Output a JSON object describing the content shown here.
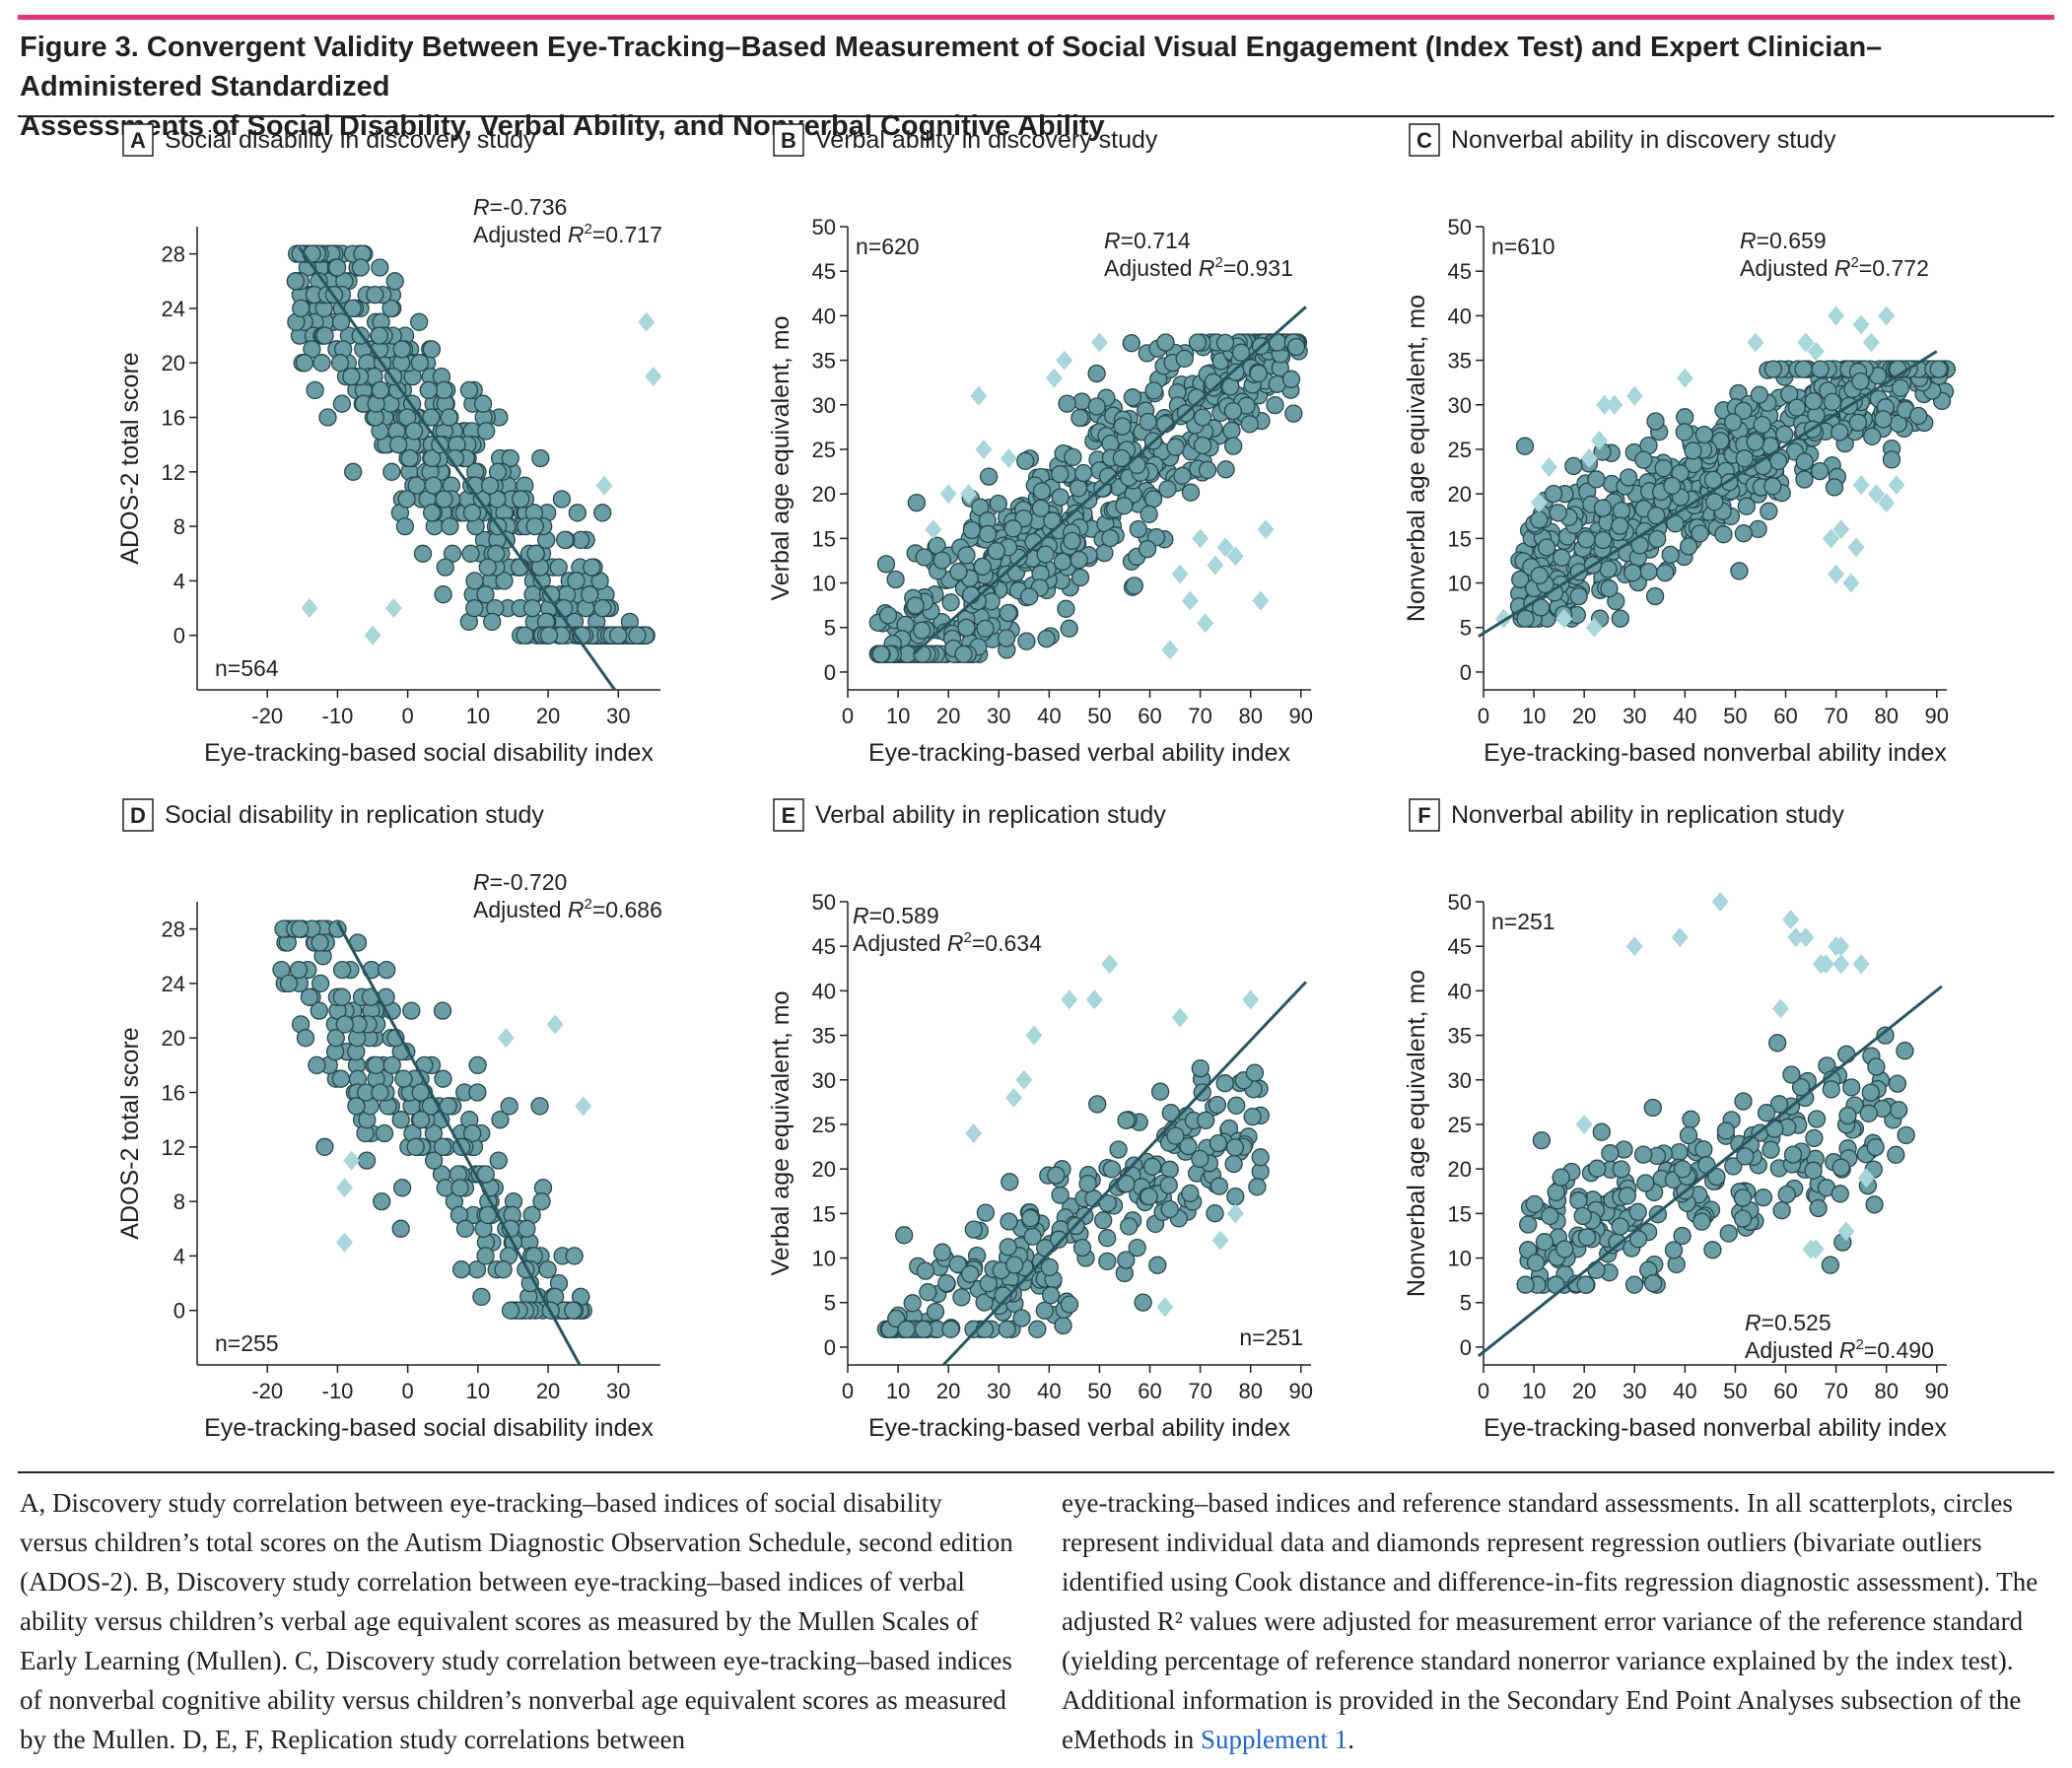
{
  "figure": {
    "title_line1": "Figure 3. Convergent Validity Between Eye-Tracking–Based Measurement of Social Visual Engagement (Index Test) and Expert Clinician–Administered Standardized",
    "title_line2": "Assessments of Social Disability, Verbal Ability, and Nonverbal Cognitive Ability",
    "accent_color": "#e0337a",
    "circle_color": "#6a9ea4",
    "diamond_color": "#a9d6da"
  },
  "caption": {
    "col1": "A, Discovery study correlation between eye-tracking–based indices of social disability versus children’s total scores on the Autism Diagnostic Observation Schedule, second edition (ADOS-2). B, Discovery study correlation between eye-tracking–based indices of verbal ability versus children’s verbal age equivalent scores as measured by the Mullen Scales of Early Learning (Mullen). C, Discovery study correlation between eye-tracking–based indices of nonverbal cognitive ability versus children’s nonverbal age equivalent scores as measured by the Mullen. D, E, F, Replication study correlations between",
    "col2_main": "eye-tracking–based indices and reference standard assessments. In all scatterplots, circles represent individual data and diamonds represent regression outliers (bivariate outliers identified using Cook distance and difference-in-fits regression diagnostic assessment). The adjusted R² values were adjusted for measurement error variance of the reference standard (yielding percentage of reference standard nonerror variance explained by the index test). Additional information is provided in the Secondary End Point Analyses subsection of the eMethods in ",
    "col2_link": "Supplement 1",
    "col2_end": "."
  },
  "chart_data": [
    {
      "id": "A",
      "type": "scatter",
      "letter": "A",
      "title": "Social disability in discovery study",
      "xlabel": "Eye-tracking-based social disability index",
      "ylabel": "ADOS-2 total score",
      "xlim": [
        -30,
        36
      ],
      "ylim": [
        -4,
        30
      ],
      "xticks": [
        -20,
        -10,
        0,
        10,
        20,
        30
      ],
      "yticks": [
        0,
        4,
        8,
        12,
        16,
        20,
        24,
        28
      ],
      "n_label": "n=564",
      "r_label": "R=-0.736",
      "adj_r2_label": "Adjusted R2=0.717",
      "fit_line": [
        [
          -15.5,
          28.5
        ],
        [
          29.5,
          -4
        ]
      ],
      "gen": {
        "n": 564,
        "xmin": -16,
        "xmax": 34,
        "slope": -0.72,
        "intercept": 17.3,
        "noise": 4.2,
        "yint": true,
        "ymin": 0,
        "ymax": 28,
        "seed": 11
      },
      "outliers": [
        [
          -14,
          2
        ],
        [
          -5,
          0
        ],
        [
          -2,
          2
        ],
        [
          28,
          11
        ],
        [
          34,
          23
        ],
        [
          35,
          19
        ]
      ],
      "label_pos": {
        "n": "bl",
        "r": "tr"
      }
    },
    {
      "id": "B",
      "type": "scatter",
      "letter": "B",
      "title": "Verbal ability in discovery study",
      "xlabel": "Eye-tracking-based verbal ability index",
      "ylabel": "Verbal age equivalent, mo",
      "xlim": [
        0,
        92
      ],
      "ylim": [
        -2,
        50
      ],
      "xticks": [
        0,
        10,
        20,
        30,
        40,
        50,
        60,
        70,
        80,
        90
      ],
      "yticks": [
        0,
        5,
        10,
        15,
        20,
        25,
        30,
        35,
        40,
        45,
        50
      ],
      "n_label": "n=620",
      "r_label": "R=0.714",
      "adj_r2_label": "Adjusted R2=0.931",
      "fit_line": [
        [
          13,
          2
        ],
        [
          91,
          41
        ]
      ],
      "gen": {
        "n": 620,
        "xmin": 6,
        "xmax": 90,
        "slope": 0.5,
        "intercept": -4.5,
        "noise": 5.2,
        "yint": false,
        "ymin": 2,
        "ymax": 37,
        "seed": 22
      },
      "outliers": [
        [
          17,
          16
        ],
        [
          20,
          20
        ],
        [
          24,
          20
        ],
        [
          26,
          31
        ],
        [
          27,
          25
        ],
        [
          32,
          24
        ],
        [
          41,
          33
        ],
        [
          43,
          35
        ],
        [
          50,
          37
        ],
        [
          64,
          2.5
        ],
        [
          66,
          11
        ],
        [
          68,
          8
        ],
        [
          70,
          15
        ],
        [
          71,
          5.5
        ],
        [
          73,
          12
        ],
        [
          75,
          14
        ],
        [
          77,
          13
        ],
        [
          82,
          8
        ],
        [
          83,
          16
        ]
      ],
      "label_pos": {
        "n": "tl",
        "r": "tr"
      }
    },
    {
      "id": "C",
      "type": "scatter",
      "letter": "C",
      "title": "Nonverbal ability in discovery study",
      "xlabel": "Eye-tracking-based nonverbal ability index",
      "ylabel": "Nonverbal age equivalent, mo",
      "xlim": [
        0,
        92
      ],
      "ylim": [
        -2,
        50
      ],
      "xticks": [
        0,
        10,
        20,
        30,
        40,
        50,
        60,
        70,
        80,
        90
      ],
      "yticks": [
        0,
        5,
        10,
        15,
        20,
        25,
        30,
        35,
        40,
        45,
        50
      ],
      "n_label": "n=610",
      "r_label": "R=0.659",
      "adj_r2_label": "Adjusted R2=0.772",
      "fit_line": [
        [
          -1,
          4
        ],
        [
          90,
          36
        ]
      ],
      "gen": {
        "n": 610,
        "xmin": 7,
        "xmax": 92,
        "slope": 0.33,
        "intercept": 7.5,
        "noise": 4.2,
        "yint": false,
        "ymin": 6,
        "ymax": 34,
        "seed": 33
      },
      "outliers": [
        [
          4,
          6
        ],
        [
          11,
          19
        ],
        [
          13,
          23
        ],
        [
          16,
          6
        ],
        [
          21,
          24
        ],
        [
          22,
          5
        ],
        [
          23,
          26
        ],
        [
          24,
          30
        ],
        [
          26,
          30
        ],
        [
          30,
          31
        ],
        [
          40,
          33
        ],
        [
          54,
          37
        ],
        [
          64,
          37
        ],
        [
          66,
          36
        ],
        [
          69,
          15
        ],
        [
          70,
          11
        ],
        [
          70,
          40
        ],
        [
          71,
          16
        ],
        [
          73,
          10
        ],
        [
          74,
          14
        ],
        [
          75,
          39
        ],
        [
          77,
          37
        ],
        [
          78,
          20
        ],
        [
          80,
          19
        ],
        [
          80,
          40
        ],
        [
          82,
          21
        ],
        [
          75,
          21
        ]
      ],
      "label_pos": {
        "n": "tl",
        "r": "tr"
      }
    },
    {
      "id": "D",
      "type": "scatter",
      "letter": "D",
      "title": "Social disability in replication study",
      "xlabel": "Eye-tracking-based social disability index",
      "ylabel": "ADOS-2 total score",
      "xlim": [
        -30,
        36
      ],
      "ylim": [
        -4,
        30
      ],
      "xticks": [
        -20,
        -10,
        0,
        10,
        20,
        30
      ],
      "yticks": [
        0,
        4,
        8,
        12,
        16,
        20,
        24,
        28
      ],
      "n_label": "n=255",
      "r_label": "R=-0.720",
      "adj_r2_label": "Adjusted R2=0.686",
      "fit_line": [
        [
          -10,
          28.5
        ],
        [
          24.5,
          -4
        ]
      ],
      "gen": {
        "n": 255,
        "xmin": -18,
        "xmax": 25,
        "slope": -0.75,
        "intercept": 15.5,
        "noise": 4,
        "yint": true,
        "ymin": 0,
        "ymax": 28,
        "seed": 44
      },
      "outliers": [
        [
          -9,
          9
        ],
        [
          -9,
          5
        ],
        [
          -8,
          11
        ],
        [
          14,
          20
        ],
        [
          21,
          21
        ],
        [
          25,
          15
        ]
      ],
      "label_pos": {
        "n": "bl",
        "r": "tr"
      }
    },
    {
      "id": "E",
      "type": "scatter",
      "letter": "E",
      "title": "Verbal ability in replication study",
      "xlabel": "Eye-tracking-based verbal ability index",
      "ylabel": "Verbal age equivalent, mo",
      "xlim": [
        0,
        92
      ],
      "ylim": [
        -2,
        50
      ],
      "xticks": [
        0,
        10,
        20,
        30,
        40,
        50,
        60,
        70,
        80,
        90
      ],
      "yticks": [
        0,
        5,
        10,
        15,
        20,
        25,
        30,
        35,
        40,
        45,
        50
      ],
      "n_label": "n=251",
      "r_label": "R=0.589",
      "adj_r2_label": "Adjusted R2=0.634",
      "fit_line": [
        [
          19,
          -2
        ],
        [
          91,
          41
        ]
      ],
      "gen": {
        "n": 251,
        "xmin": 7,
        "xmax": 82,
        "slope": 0.38,
        "intercept": -4,
        "noise": 5,
        "yint": false,
        "ymin": 2,
        "ymax": 37,
        "seed": 55
      },
      "outliers": [
        [
          25,
          24
        ],
        [
          33,
          28
        ],
        [
          35,
          30
        ],
        [
          37,
          35
        ],
        [
          44,
          39
        ],
        [
          49,
          39
        ],
        [
          52,
          43
        ],
        [
          63,
          4.5
        ],
        [
          66,
          37
        ],
        [
          74,
          12
        ],
        [
          77,
          15
        ],
        [
          80,
          39
        ]
      ],
      "label_pos": {
        "n": "br",
        "r": "tl"
      }
    },
    {
      "id": "F",
      "type": "scatter",
      "letter": "F",
      "title": "Nonverbal ability in replication study",
      "xlabel": "Eye-tracking-based nonverbal ability index",
      "ylabel": "Nonverbal age equivalent, mo",
      "xlim": [
        0,
        92
      ],
      "ylim": [
        -2,
        50
      ],
      "xticks": [
        0,
        10,
        20,
        30,
        40,
        50,
        60,
        70,
        80,
        90
      ],
      "yticks": [
        0,
        5,
        10,
        15,
        20,
        25,
        30,
        35,
        40,
        45,
        50
      ],
      "n_label": "n=251",
      "r_label": "R=0.525",
      "adj_r2_label": "Adjusted R2=0.490",
      "fit_line": [
        [
          -1,
          -1
        ],
        [
          91,
          40.5
        ]
      ],
      "gen": {
        "n": 251,
        "xmin": 8,
        "xmax": 84,
        "slope": 0.21,
        "intercept": 9,
        "noise": 4.5,
        "yint": false,
        "ymin": 7,
        "ymax": 40,
        "seed": 66
      },
      "outliers": [
        [
          20,
          25
        ],
        [
          30,
          45
        ],
        [
          39,
          46
        ],
        [
          47,
          50
        ],
        [
          59,
          38
        ],
        [
          61,
          48
        ],
        [
          62,
          46
        ],
        [
          64,
          46
        ],
        [
          65,
          11
        ],
        [
          66,
          11
        ],
        [
          67,
          43
        ],
        [
          68,
          43
        ],
        [
          70,
          45
        ],
        [
          71,
          45
        ],
        [
          72,
          13
        ],
        [
          75,
          43
        ],
        [
          76,
          19
        ],
        [
          71,
          43
        ]
      ],
      "label_pos": {
        "n": "tl",
        "r": "br"
      }
    }
  ]
}
